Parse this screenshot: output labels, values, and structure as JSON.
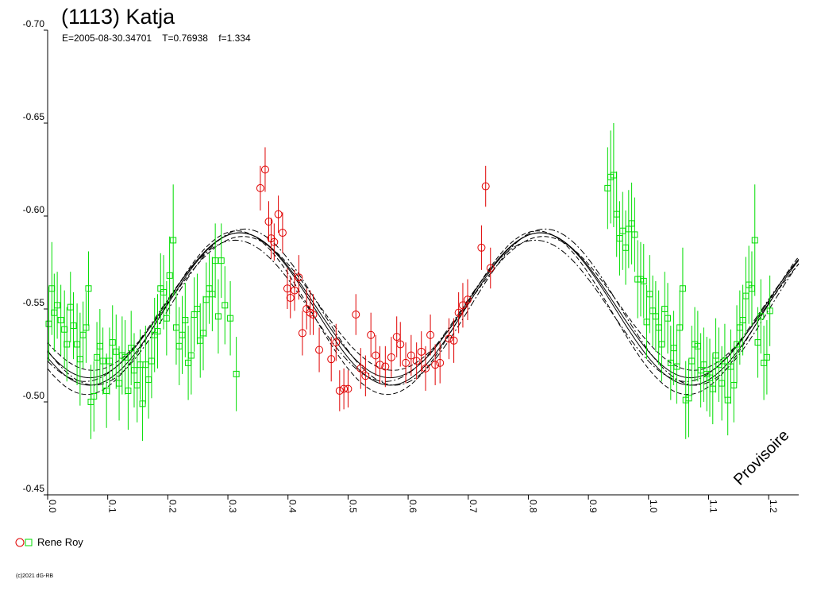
{
  "chart_data": {
    "type": "scatter",
    "title": "(1113) Katja",
    "subtitle": "E=2005-08-30.34701    T=0.76938    f=1.334",
    "xlim": [
      0.0,
      1.25
    ],
    "ylim": [
      -0.7,
      -0.45
    ],
    "y_ticks": [
      -0.7,
      -0.65,
      -0.6,
      -0.55,
      -0.5,
      -0.45
    ],
    "y_tick_labels": [
      "-0.70",
      "-0.65",
      "-0.60",
      "-0.55",
      "-0.50",
      "-0.45"
    ],
    "x_ticks": [
      0.0,
      0.1,
      0.2,
      0.3,
      0.4,
      0.5,
      0.6,
      0.7,
      0.8,
      0.9,
      1.0,
      1.1,
      1.2
    ],
    "x_tick_labels": [
      "0.0",
      "0.1",
      "0.2",
      "0.3",
      "0.4",
      "0.5",
      "0.6",
      "0.7",
      "0.8",
      "0.9",
      "1.0",
      "1.1",
      "1.2"
    ],
    "grid": false,
    "legend": "bottom-left",
    "legend_label": "Rene Roy",
    "watermark": "Provisoire",
    "copyright": "(c)2021 dG-RB",
    "series": [
      {
        "name": "Rene Roy",
        "marker": "circle",
        "color": "#e00000",
        "points": [
          [
            0.354,
            -0.615,
            0.012
          ],
          [
            0.362,
            -0.625,
            0.012
          ],
          [
            0.368,
            -0.597,
            0.011
          ],
          [
            0.372,
            -0.588,
            0.011
          ],
          [
            0.377,
            -0.586,
            0.01
          ],
          [
            0.384,
            -0.601,
            0.01
          ],
          [
            0.391,
            -0.591,
            0.011
          ],
          [
            0.399,
            -0.561,
            0.011
          ],
          [
            0.404,
            -0.556,
            0.011
          ],
          [
            0.411,
            -0.56,
            0.011
          ],
          [
            0.418,
            -0.567,
            0.012
          ],
          [
            0.424,
            -0.537,
            0.012
          ],
          [
            0.431,
            -0.55,
            0.011
          ],
          [
            0.437,
            -0.548,
            0.012
          ],
          [
            0.442,
            -0.547,
            0.011
          ],
          [
            0.452,
            -0.528,
            0.012
          ],
          [
            0.472,
            -0.523,
            0.012
          ],
          [
            0.48,
            -0.532,
            0.01
          ],
          [
            0.486,
            -0.506,
            0.011
          ],
          [
            0.493,
            -0.507,
            0.011
          ],
          [
            0.5,
            -0.507,
            0.01
          ],
          [
            0.513,
            -0.547,
            0.011
          ],
          [
            0.521,
            -0.518,
            0.011
          ],
          [
            0.529,
            -0.514,
            0.011
          ],
          [
            0.538,
            -0.536,
            0.012
          ],
          [
            0.546,
            -0.525,
            0.011
          ],
          [
            0.553,
            -0.52,
            0.01
          ],
          [
            0.562,
            -0.519,
            0.011
          ],
          [
            0.572,
            -0.524,
            0.011
          ],
          [
            0.581,
            -0.535,
            0.011
          ],
          [
            0.587,
            -0.531,
            0.012
          ],
          [
            0.596,
            -0.521,
            0.011
          ],
          [
            0.605,
            -0.525,
            0.011
          ],
          [
            0.614,
            -0.522,
            0.01
          ],
          [
            0.622,
            -0.527,
            0.011
          ],
          [
            0.629,
            -0.518,
            0.012
          ],
          [
            0.637,
            -0.536,
            0.011
          ],
          [
            0.645,
            -0.52,
            0.011
          ],
          [
            0.653,
            -0.521,
            0.011
          ],
          [
            0.668,
            -0.534,
            0.011
          ],
          [
            0.676,
            -0.533,
            0.012
          ],
          [
            0.684,
            -0.548,
            0.011
          ],
          [
            0.691,
            -0.552,
            0.012
          ],
          [
            0.699,
            -0.555,
            0.011
          ],
          [
            0.722,
            -0.583,
            0.012
          ],
          [
            0.729,
            -0.616,
            0.011
          ],
          [
            0.737,
            -0.572,
            0.011
          ]
        ]
      },
      {
        "name": "Rene Roy",
        "marker": "square",
        "color": "#00dd00",
        "points": [
          [
            0.002,
            -0.542,
            0.02
          ],
          [
            0.007,
            -0.561,
            0.025
          ],
          [
            0.011,
            -0.548,
            0.021
          ],
          [
            0.016,
            -0.552,
            0.018
          ],
          [
            0.022,
            -0.544,
            0.019
          ],
          [
            0.028,
            -0.539,
            0.021
          ],
          [
            0.032,
            -0.531,
            0.02
          ],
          [
            0.038,
            -0.551,
            0.019
          ],
          [
            0.043,
            -0.541,
            0.018
          ],
          [
            0.049,
            -0.531,
            0.022
          ],
          [
            0.054,
            -0.523,
            0.025
          ],
          [
            0.059,
            -0.536,
            0.018
          ],
          [
            0.064,
            -0.54,
            0.019
          ],
          [
            0.068,
            -0.561,
            0.02
          ],
          [
            0.072,
            -0.5,
            0.02
          ],
          [
            0.077,
            -0.503,
            0.019
          ],
          [
            0.082,
            -0.524,
            0.019
          ],
          [
            0.087,
            -0.53,
            0.02
          ],
          [
            0.092,
            -0.522,
            0.018
          ],
          [
            0.098,
            -0.506,
            0.02
          ],
          [
            0.103,
            -0.522,
            0.018
          ],
          [
            0.108,
            -0.532,
            0.02
          ],
          [
            0.114,
            -0.527,
            0.02
          ],
          [
            0.119,
            -0.51,
            0.02
          ],
          [
            0.124,
            -0.525,
            0.021
          ],
          [
            0.129,
            -0.524,
            0.02
          ],
          [
            0.134,
            -0.506,
            0.021
          ],
          [
            0.139,
            -0.529,
            0.02
          ],
          [
            0.144,
            -0.517,
            0.02
          ],
          [
            0.149,
            -0.509,
            0.02
          ],
          [
            0.154,
            -0.52,
            0.019
          ],
          [
            0.158,
            -0.499,
            0.02
          ],
          [
            0.163,
            -0.52,
            0.021
          ],
          [
            0.168,
            -0.512,
            0.021
          ],
          [
            0.173,
            -0.522,
            0.02
          ],
          [
            0.178,
            -0.536,
            0.02
          ],
          [
            0.183,
            -0.538,
            0.02
          ],
          [
            0.188,
            -0.561,
            0.019
          ],
          [
            0.193,
            -0.559,
            0.02
          ],
          [
            0.198,
            -0.545,
            0.02
          ],
          [
            0.203,
            -0.568,
            0.021
          ],
          [
            0.209,
            -0.587,
            0.03
          ],
          [
            0.214,
            -0.54,
            0.02
          ],
          [
            0.219,
            -0.53,
            0.021
          ],
          [
            0.224,
            -0.536,
            0.021
          ],
          [
            0.229,
            -0.544,
            0.02
          ],
          [
            0.234,
            -0.521,
            0.02
          ],
          [
            0.239,
            -0.525,
            0.021
          ],
          [
            0.244,
            -0.547,
            0.02
          ],
          [
            0.249,
            -0.55,
            0.019
          ],
          [
            0.254,
            -0.533,
            0.02
          ],
          [
            0.259,
            -0.537,
            0.02
          ],
          [
            0.264,
            -0.555,
            0.02
          ],
          [
            0.269,
            -0.561,
            0.019
          ],
          [
            0.274,
            -0.558,
            0.02
          ],
          [
            0.279,
            -0.576,
            0.02
          ],
          [
            0.284,
            -0.546,
            0.02
          ],
          [
            0.289,
            -0.576,
            0.02
          ],
          [
            0.295,
            -0.552,
            0.021
          ],
          [
            0.304,
            -0.545,
            0.02
          ],
          [
            0.314,
            -0.515,
            0.02
          ],
          [
            0.932,
            -0.615,
            0.022
          ],
          [
            0.937,
            -0.621,
            0.025
          ],
          [
            0.942,
            -0.622,
            0.028
          ],
          [
            0.947,
            -0.601,
            0.023
          ],
          [
            0.952,
            -0.588,
            0.02
          ],
          [
            0.957,
            -0.592,
            0.021
          ],
          [
            0.962,
            -0.583,
            0.02
          ],
          [
            0.967,
            -0.593,
            0.021
          ],
          [
            0.972,
            -0.596,
            0.022
          ],
          [
            0.977,
            -0.59,
            0.02
          ],
          [
            0.982,
            -0.566,
            0.021
          ],
          [
            0.987,
            -0.566,
            0.02
          ],
          [
            0.992,
            -0.565,
            0.02
          ],
          [
            0.997,
            -0.543,
            0.02
          ],
          [
            1.002,
            -0.558,
            0.021
          ],
          [
            1.007,
            -0.549,
            0.019
          ],
          [
            1.012,
            -0.546,
            0.019
          ],
          [
            1.017,
            -0.54,
            0.02
          ],
          [
            1.022,
            -0.531,
            0.02
          ],
          [
            1.027,
            -0.55,
            0.02
          ],
          [
            1.032,
            -0.545,
            0.019
          ],
          [
            1.037,
            -0.521,
            0.02
          ],
          [
            1.042,
            -0.529,
            0.02
          ],
          [
            1.047,
            -0.519,
            0.02
          ],
          [
            1.052,
            -0.54,
            0.02
          ],
          [
            1.057,
            -0.561,
            0.022
          ],
          [
            1.062,
            -0.501,
            0.021
          ],
          [
            1.067,
            -0.502,
            0.021
          ],
          [
            1.072,
            -0.522,
            0.019
          ],
          [
            1.077,
            -0.531,
            0.02
          ],
          [
            1.082,
            -0.53,
            0.019
          ],
          [
            1.087,
            -0.517,
            0.02
          ],
          [
            1.092,
            -0.52,
            0.02
          ],
          [
            1.097,
            -0.515,
            0.02
          ],
          [
            1.102,
            -0.513,
            0.021
          ],
          [
            1.107,
            -0.507,
            0.019
          ],
          [
            1.112,
            -0.525,
            0.02
          ],
          [
            1.117,
            -0.52,
            0.02
          ],
          [
            1.122,
            -0.51,
            0.02
          ],
          [
            1.127,
            -0.522,
            0.02
          ],
          [
            1.132,
            -0.501,
            0.019
          ],
          [
            1.137,
            -0.519,
            0.02
          ],
          [
            1.142,
            -0.509,
            0.02
          ],
          [
            1.147,
            -0.531,
            0.021
          ],
          [
            1.152,
            -0.54,
            0.02
          ],
          [
            1.157,
            -0.544,
            0.019
          ],
          [
            1.162,
            -0.557,
            0.021
          ],
          [
            1.167,
            -0.563,
            0.021
          ],
          [
            1.172,
            -0.561,
            0.02
          ],
          [
            1.177,
            -0.587,
            0.03
          ],
          [
            1.182,
            -0.532,
            0.019
          ],
          [
            1.187,
            -0.546,
            0.02
          ],
          [
            1.192,
            -0.521,
            0.02
          ],
          [
            1.197,
            -0.524,
            0.02
          ],
          [
            1.202,
            -0.549,
            0.019
          ]
        ]
      }
    ],
    "fit_curves": [
      {
        "style": "solid",
        "mean": -0.55,
        "amplitude": 0.041,
        "phase_of_minimum": 0.07,
        "period": 0.5
      },
      {
        "style": "solid",
        "mean": -0.552,
        "amplitude": 0.039,
        "phase_of_minimum": 0.07,
        "period": 0.5
      },
      {
        "style": "dashed",
        "mean": -0.548,
        "amplitude": 0.044,
        "phase_of_minimum": 0.065,
        "period": 0.5
      },
      {
        "style": "dashed",
        "mean": -0.553,
        "amplitude": 0.036,
        "phase_of_minimum": 0.075,
        "period": 0.5
      },
      {
        "style": "dashdot",
        "mean": -0.551,
        "amplitude": 0.042,
        "phase_of_minimum": 0.078,
        "period": 0.5
      },
      {
        "style": "dashdot",
        "mean": -0.549,
        "amplitude": 0.038,
        "phase_of_minimum": 0.062,
        "period": 0.5
      }
    ]
  }
}
